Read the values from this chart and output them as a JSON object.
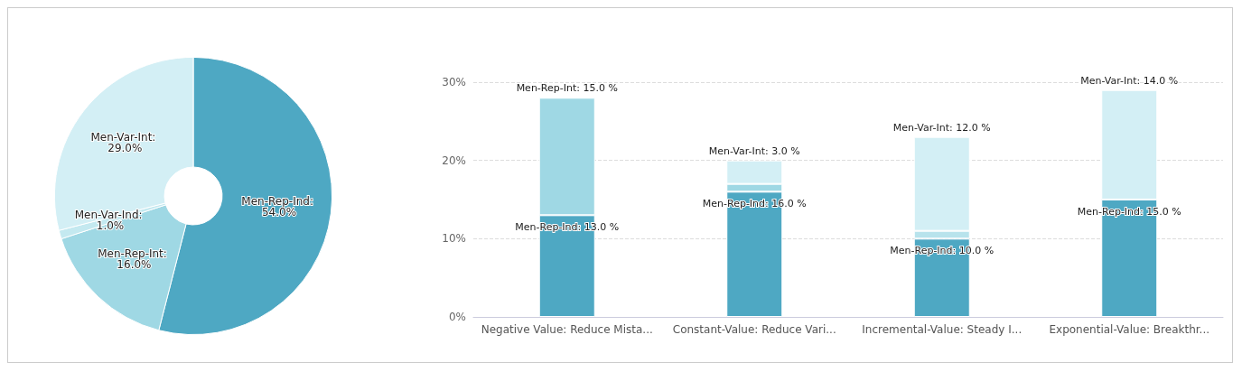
{
  "chart_data": [
    {
      "type": "donut",
      "categories": [
        "Men-Rep-Ind",
        "Men-Rep-Int",
        "Men-Var-Ind",
        "Men-Var-Int"
      ],
      "values": [
        54,
        16,
        1,
        29
      ],
      "colors": [
        "#4ea8c3",
        "#9fd8e4",
        "#c4e9f0",
        "#d3eff5"
      ],
      "value_labels": [
        ": 54.0%",
        ": 16.0%",
        ": 1.0%",
        ": 29.0%"
      ],
      "legend": false
    },
    {
      "type": "bar",
      "stacked": true,
      "categories": [
        "Negative Value: Reduce Mista...",
        "Constant-Value: Reduce Vari...",
        "Incremental-Value: Steady I...",
        "Exponential-Value: Breakthr..."
      ],
      "series": [
        {
          "name": "Men-Rep-Ind",
          "color": "#4ea8c3",
          "values": [
            13,
            16,
            10,
            15
          ],
          "value_labels": [
            ": 13.0 %",
            ": 16.0 %",
            ": 10.0 %",
            ": 15.0 %"
          ]
        },
        {
          "name": "Men-Rep-Int",
          "color": "#9fd8e4",
          "values": [
            15,
            1,
            null,
            null
          ],
          "value_labels": [
            ": 15.0 %",
            null,
            null,
            null
          ]
        },
        {
          "color": "#b8e3ec",
          "values": [
            null,
            null,
            1,
            null
          ]
        },
        {
          "name": "Men-Var-Int",
          "color": "#d3eff5",
          "values": [
            null,
            3,
            12,
            14
          ],
          "value_labels": [
            null,
            ": 3.0 %",
            ": 12.0 %",
            ": 14.0 %"
          ]
        }
      ],
      "ylim": [
        0,
        30
      ],
      "yticks": [
        {
          "value": 0,
          "label": "0%"
        },
        {
          "value": 10,
          "label": "10%"
        },
        {
          "value": 20,
          "label": "20%"
        },
        {
          "value": 30,
          "label": "30%"
        }
      ],
      "grid": "y",
      "legend": false
    }
  ]
}
